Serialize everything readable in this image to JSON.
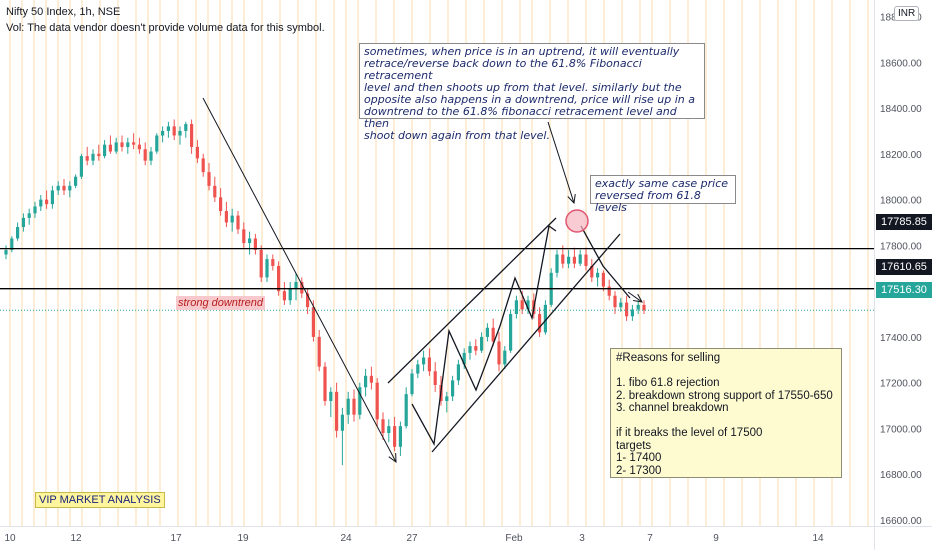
{
  "header": {
    "title": "Nifty 50 Index, 1h, NSE",
    "volume_note": "Vol: The data vendor doesn't provide volume data for this symbol."
  },
  "currency_label": "INR",
  "colors": {
    "up": "#26a69a",
    "down": "#ef5350",
    "grid_vertical": "#fbe9c8",
    "annotation_line": "#000000",
    "current_price": "#26a69a",
    "level_tag": "#131722",
    "highlight_circle": "#f7b6c2",
    "reasons_bg": "#fffbd1",
    "vip_bg": "#fff59d",
    "downtrend_bg": "#f8c9cc"
  },
  "annotations": {
    "note_top": [
      "sometimes, when price is in an uptrend, it will eventually",
      "retrace/reverse back down to the 61.8% Fibonacci retracement",
      "level and then shoots up from that level. similarly but the",
      "opposite also happens in a downtrend, price will rise up in a",
      "downtrend to the 61.8% fibonacci retracement level and then",
      "shoot down again from that level."
    ],
    "note_same_case": [
      "exactly same case price",
      "reversed from 61.8 levels"
    ],
    "strong_downtrend": "strong downtrend",
    "vip": "VIP MARKET ANALYSIS",
    "reasons": [
      "#Reasons for selling",
      "",
      "1. fibo 61.8 rejection",
      "2. breakdown strong support of  17550-650",
      "3. channel breakdown",
      "",
      "if it breaks the level of 17500",
      "targets",
      "1- 17400",
      "2- 17300"
    ]
  },
  "chart_data": {
    "type": "candlestick",
    "symbol": "Nifty 50 Index",
    "interval": "1h",
    "exchange": "NSE",
    "ylim": [
      16600,
      18800
    ],
    "y_ticks": [
      "18800.00",
      "18600.00",
      "18400.00",
      "18200.00",
      "18000.00",
      "17800.00",
      "17600.00",
      "17400.00",
      "17200.00",
      "17000.00",
      "16800.00",
      "16600.00"
    ],
    "x_ticks": [
      "10",
      "12",
      "17",
      "19",
      "24",
      "27",
      "Feb",
      "3",
      "7",
      "9",
      "14"
    ],
    "horizontal_levels": [
      {
        "label": "17785.85",
        "value": 17785.85
      },
      {
        "label": "17610.65",
        "value": 17610.65
      }
    ],
    "last_price": {
      "label": "17516.30",
      "value": 17516.3
    },
    "candles": [
      {
        "o": 17760,
        "h": 17800,
        "l": 17740,
        "c": 17780
      },
      {
        "o": 17780,
        "h": 17840,
        "l": 17770,
        "c": 17830
      },
      {
        "o": 17830,
        "h": 17900,
        "l": 17820,
        "c": 17880
      },
      {
        "o": 17880,
        "h": 17940,
        "l": 17860,
        "c": 17920
      },
      {
        "o": 17920,
        "h": 17960,
        "l": 17890,
        "c": 17940
      },
      {
        "o": 17940,
        "h": 17990,
        "l": 17920,
        "c": 17970
      },
      {
        "o": 17970,
        "h": 18020,
        "l": 17950,
        "c": 18000
      },
      {
        "o": 18000,
        "h": 18040,
        "l": 17960,
        "c": 17980
      },
      {
        "o": 17980,
        "h": 18060,
        "l": 17960,
        "c": 18040
      },
      {
        "o": 18040,
        "h": 18080,
        "l": 18020,
        "c": 18060
      },
      {
        "o": 18060,
        "h": 18090,
        "l": 18020,
        "c": 18040
      },
      {
        "o": 18040,
        "h": 18080,
        "l": 18010,
        "c": 18060
      },
      {
        "o": 18060,
        "h": 18110,
        "l": 18050,
        "c": 18100
      },
      {
        "o": 18100,
        "h": 18200,
        "l": 18090,
        "c": 18190
      },
      {
        "o": 18190,
        "h": 18230,
        "l": 18150,
        "c": 18170
      },
      {
        "o": 18170,
        "h": 18220,
        "l": 18150,
        "c": 18200
      },
      {
        "o": 18200,
        "h": 18240,
        "l": 18170,
        "c": 18190
      },
      {
        "o": 18190,
        "h": 18260,
        "l": 18180,
        "c": 18240
      },
      {
        "o": 18240,
        "h": 18280,
        "l": 18200,
        "c": 18210
      },
      {
        "o": 18210,
        "h": 18270,
        "l": 18200,
        "c": 18250
      },
      {
        "o": 18250,
        "h": 18280,
        "l": 18210,
        "c": 18230
      },
      {
        "o": 18230,
        "h": 18270,
        "l": 18200,
        "c": 18250
      },
      {
        "o": 18250,
        "h": 18290,
        "l": 18220,
        "c": 18240
      },
      {
        "o": 18240,
        "h": 18270,
        "l": 18200,
        "c": 18220
      },
      {
        "o": 18220,
        "h": 18250,
        "l": 18150,
        "c": 18170
      },
      {
        "o": 18170,
        "h": 18230,
        "l": 18150,
        "c": 18210
      },
      {
        "o": 18210,
        "h": 18290,
        "l": 18200,
        "c": 18280
      },
      {
        "o": 18280,
        "h": 18320,
        "l": 18250,
        "c": 18300
      },
      {
        "o": 18300,
        "h": 18340,
        "l": 18270,
        "c": 18320
      },
      {
        "o": 18320,
        "h": 18350,
        "l": 18260,
        "c": 18280
      },
      {
        "o": 18280,
        "h": 18320,
        "l": 18240,
        "c": 18300
      },
      {
        "o": 18300,
        "h": 18340,
        "l": 18270,
        "c": 18330
      },
      {
        "o": 18330,
        "h": 18350,
        "l": 18200,
        "c": 18230
      },
      {
        "o": 18230,
        "h": 18260,
        "l": 18160,
        "c": 18180
      },
      {
        "o": 18180,
        "h": 18200,
        "l": 18100,
        "c": 18120
      },
      {
        "o": 18120,
        "h": 18160,
        "l": 18040,
        "c": 18060
      },
      {
        "o": 18060,
        "h": 18100,
        "l": 17990,
        "c": 18010
      },
      {
        "o": 18010,
        "h": 18050,
        "l": 17930,
        "c": 17950
      },
      {
        "o": 17950,
        "h": 17990,
        "l": 17880,
        "c": 17900
      },
      {
        "o": 17900,
        "h": 17960,
        "l": 17860,
        "c": 17930
      },
      {
        "o": 17930,
        "h": 17950,
        "l": 17850,
        "c": 17870
      },
      {
        "o": 17870,
        "h": 17900,
        "l": 17790,
        "c": 17810
      },
      {
        "o": 17810,
        "h": 17860,
        "l": 17760,
        "c": 17830
      },
      {
        "o": 17830,
        "h": 17850,
        "l": 17760,
        "c": 17780
      },
      {
        "o": 17780,
        "h": 17800,
        "l": 17640,
        "c": 17660
      },
      {
        "o": 17660,
        "h": 17760,
        "l": 17640,
        "c": 17740
      },
      {
        "o": 17740,
        "h": 17760,
        "l": 17690,
        "c": 17710
      },
      {
        "o": 17710,
        "h": 17730,
        "l": 17580,
        "c": 17600
      },
      {
        "o": 17600,
        "h": 17640,
        "l": 17540,
        "c": 17560
      },
      {
        "o": 17560,
        "h": 17640,
        "l": 17540,
        "c": 17610
      },
      {
        "o": 17610,
        "h": 17680,
        "l": 17560,
        "c": 17640
      },
      {
        "o": 17640,
        "h": 17660,
        "l": 17570,
        "c": 17590
      },
      {
        "o": 17590,
        "h": 17610,
        "l": 17500,
        "c": 17530
      },
      {
        "o": 17530,
        "h": 17560,
        "l": 17380,
        "c": 17400
      },
      {
        "o": 17400,
        "h": 17430,
        "l": 17250,
        "c": 17270
      },
      {
        "o": 17270,
        "h": 17290,
        "l": 17100,
        "c": 17120
      },
      {
        "o": 17120,
        "h": 17180,
        "l": 17050,
        "c": 17160
      },
      {
        "o": 17160,
        "h": 17200,
        "l": 16960,
        "c": 16990
      },
      {
        "o": 16990,
        "h": 17090,
        "l": 16840,
        "c": 17060
      },
      {
        "o": 17060,
        "h": 17160,
        "l": 17020,
        "c": 17130
      },
      {
        "o": 17130,
        "h": 17170,
        "l": 17030,
        "c": 17060
      },
      {
        "o": 17060,
        "h": 17200,
        "l": 17040,
        "c": 17180
      },
      {
        "o": 17180,
        "h": 17260,
        "l": 17140,
        "c": 17230
      },
      {
        "o": 17230,
        "h": 17270,
        "l": 17170,
        "c": 17200
      },
      {
        "o": 17200,
        "h": 17220,
        "l": 17010,
        "c": 17040
      },
      {
        "o": 17040,
        "h": 17070,
        "l": 16950,
        "c": 16980
      },
      {
        "o": 16980,
        "h": 17040,
        "l": 16940,
        "c": 17010
      },
      {
        "o": 17010,
        "h": 17050,
        "l": 16900,
        "c": 16920
      },
      {
        "o": 16920,
        "h": 17030,
        "l": 16880,
        "c": 17010
      },
      {
        "o": 17010,
        "h": 17180,
        "l": 17000,
        "c": 17150
      },
      {
        "o": 17150,
        "h": 17260,
        "l": 17140,
        "c": 17240
      },
      {
        "o": 17240,
        "h": 17300,
        "l": 17220,
        "c": 17280
      },
      {
        "o": 17280,
        "h": 17340,
        "l": 17250,
        "c": 17310
      },
      {
        "o": 17310,
        "h": 17350,
        "l": 17230,
        "c": 17250
      },
      {
        "o": 17250,
        "h": 17290,
        "l": 17160,
        "c": 17190
      },
      {
        "o": 17190,
        "h": 17230,
        "l": 17100,
        "c": 17120
      },
      {
        "o": 17120,
        "h": 17160,
        "l": 17070,
        "c": 17140
      },
      {
        "o": 17140,
        "h": 17230,
        "l": 17120,
        "c": 17210
      },
      {
        "o": 17210,
        "h": 17300,
        "l": 17190,
        "c": 17280
      },
      {
        "o": 17280,
        "h": 17350,
        "l": 17260,
        "c": 17330
      },
      {
        "o": 17330,
        "h": 17380,
        "l": 17300,
        "c": 17360
      },
      {
        "o": 17360,
        "h": 17390,
        "l": 17320,
        "c": 17340
      },
      {
        "o": 17340,
        "h": 17420,
        "l": 17330,
        "c": 17400
      },
      {
        "o": 17400,
        "h": 17460,
        "l": 17380,
        "c": 17440
      },
      {
        "o": 17440,
        "h": 17480,
        "l": 17360,
        "c": 17380
      },
      {
        "o": 17380,
        "h": 17420,
        "l": 17250,
        "c": 17280
      },
      {
        "o": 17280,
        "h": 17360,
        "l": 17260,
        "c": 17340
      },
      {
        "o": 17340,
        "h": 17520,
        "l": 17330,
        "c": 17500
      },
      {
        "o": 17500,
        "h": 17580,
        "l": 17480,
        "c": 17560
      },
      {
        "o": 17560,
        "h": 17600,
        "l": 17500,
        "c": 17520
      },
      {
        "o": 17520,
        "h": 17580,
        "l": 17500,
        "c": 17560
      },
      {
        "o": 17560,
        "h": 17590,
        "l": 17480,
        "c": 17500
      },
      {
        "o": 17500,
        "h": 17530,
        "l": 17400,
        "c": 17420
      },
      {
        "o": 17420,
        "h": 17560,
        "l": 17410,
        "c": 17540
      },
      {
        "o": 17540,
        "h": 17700,
        "l": 17530,
        "c": 17680
      },
      {
        "o": 17680,
        "h": 17780,
        "l": 17660,
        "c": 17760
      },
      {
        "o": 17760,
        "h": 17800,
        "l": 17700,
        "c": 17720
      },
      {
        "o": 17720,
        "h": 17780,
        "l": 17700,
        "c": 17750
      },
      {
        "o": 17750,
        "h": 17790,
        "l": 17700,
        "c": 17720
      },
      {
        "o": 17720,
        "h": 17780,
        "l": 17710,
        "c": 17760
      },
      {
        "o": 17760,
        "h": 17790,
        "l": 17690,
        "c": 17710
      },
      {
        "o": 17710,
        "h": 17740,
        "l": 17640,
        "c": 17660
      },
      {
        "o": 17660,
        "h": 17700,
        "l": 17620,
        "c": 17680
      },
      {
        "o": 17680,
        "h": 17690,
        "l": 17600,
        "c": 17620
      },
      {
        "o": 17620,
        "h": 17650,
        "l": 17560,
        "c": 17580
      },
      {
        "o": 17580,
        "h": 17600,
        "l": 17500,
        "c": 17530
      },
      {
        "o": 17530,
        "h": 17570,
        "l": 17510,
        "c": 17550
      },
      {
        "o": 17550,
        "h": 17580,
        "l": 17470,
        "c": 17490
      },
      {
        "o": 17490,
        "h": 17540,
        "l": 17470,
        "c": 17520
      },
      {
        "o": 17520,
        "h": 17560,
        "l": 17500,
        "c": 17540
      },
      {
        "o": 17540,
        "h": 17560,
        "l": 17500,
        "c": 17516.3
      }
    ]
  }
}
